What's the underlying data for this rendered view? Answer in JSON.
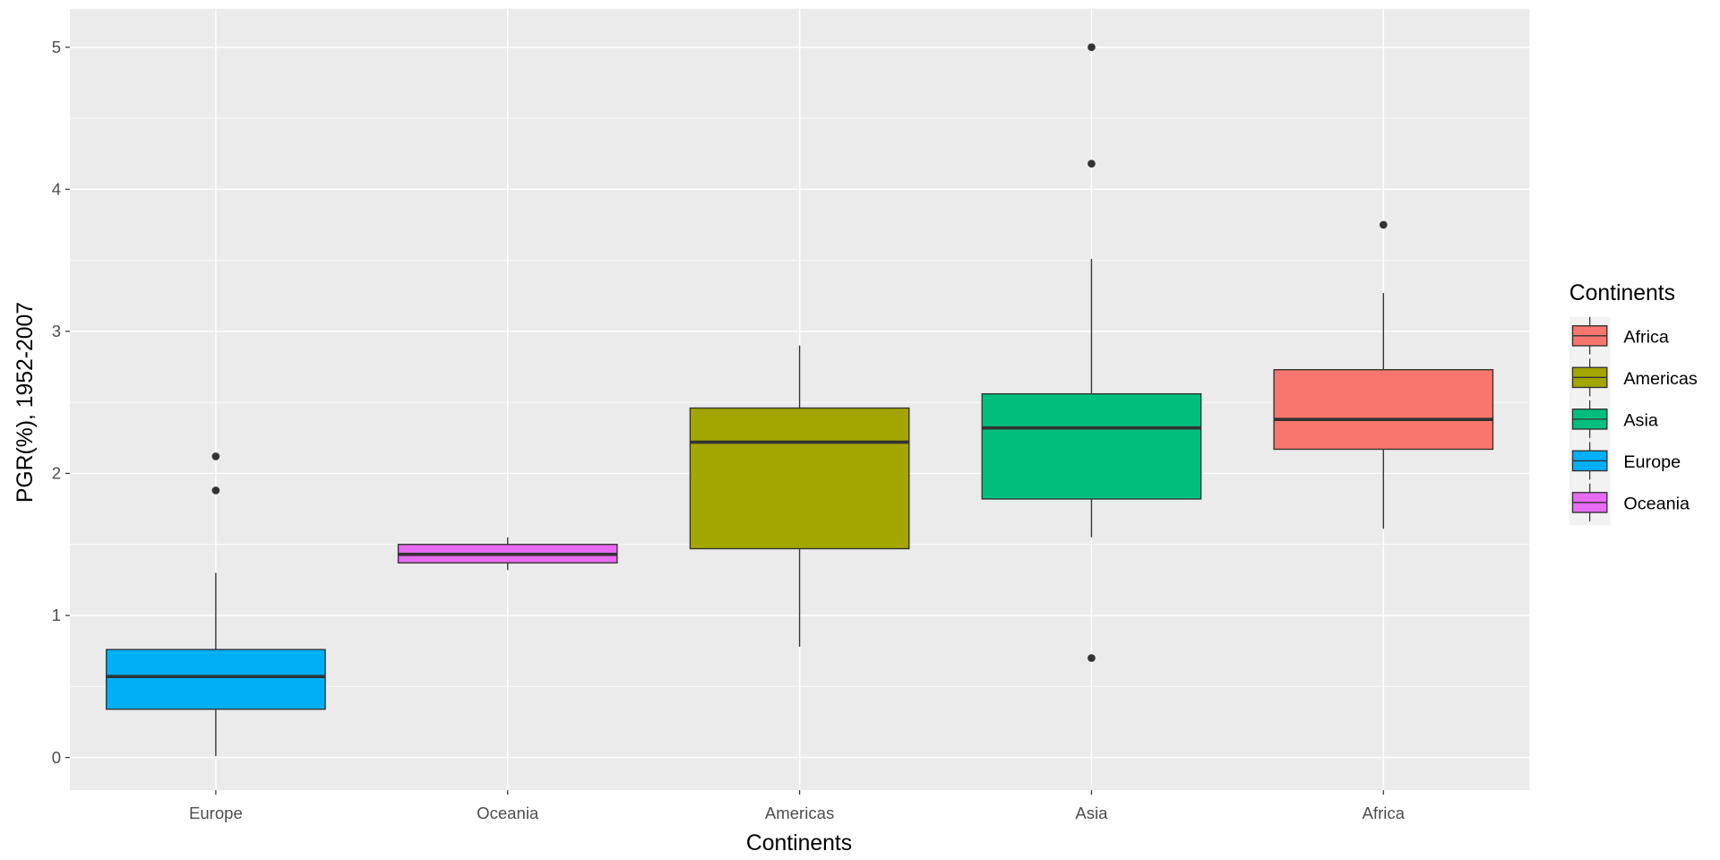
{
  "chart_data": {
    "type": "boxplot",
    "title": "",
    "xlabel": "Continents",
    "ylabel": "PGR(%), 1952-2007",
    "ylim": [
      -0.23,
      5.27
    ],
    "yticks": [
      "0",
      "1",
      "2",
      "3",
      "4",
      "5"
    ],
    "grid": true,
    "legend": {
      "title": "Continents",
      "placement": "right",
      "entries": [
        "Africa",
        "Americas",
        "Asia",
        "Europe",
        "Oceania"
      ]
    },
    "categories": [
      "Europe",
      "Oceania",
      "Americas",
      "Asia",
      "Africa"
    ],
    "colors": {
      "Africa": "#F8766D",
      "Americas": "#A3A500",
      "Asia": "#00BF7D",
      "Europe": "#00B0F6",
      "Oceania": "#E76BF3"
    },
    "boxes": [
      {
        "name": "Europe",
        "low": 0.01,
        "q1": 0.34,
        "median": 0.57,
        "q3": 0.76,
        "high": 1.3,
        "outliers": [
          2.12,
          1.88
        ]
      },
      {
        "name": "Oceania",
        "low": 1.32,
        "q1": 1.37,
        "median": 1.43,
        "q3": 1.5,
        "high": 1.55,
        "outliers": []
      },
      {
        "name": "Americas",
        "low": 0.78,
        "q1": 1.47,
        "median": 2.22,
        "q3": 2.46,
        "high": 2.9,
        "outliers": []
      },
      {
        "name": "Asia",
        "low": 1.55,
        "q1": 1.82,
        "median": 2.32,
        "q3": 2.56,
        "high": 3.51,
        "outliers": [
          5.0,
          4.18,
          0.7
        ]
      },
      {
        "name": "Africa",
        "low": 1.61,
        "q1": 2.17,
        "median": 2.38,
        "q3": 2.73,
        "high": 3.27,
        "outliers": [
          3.75
        ]
      }
    ]
  }
}
